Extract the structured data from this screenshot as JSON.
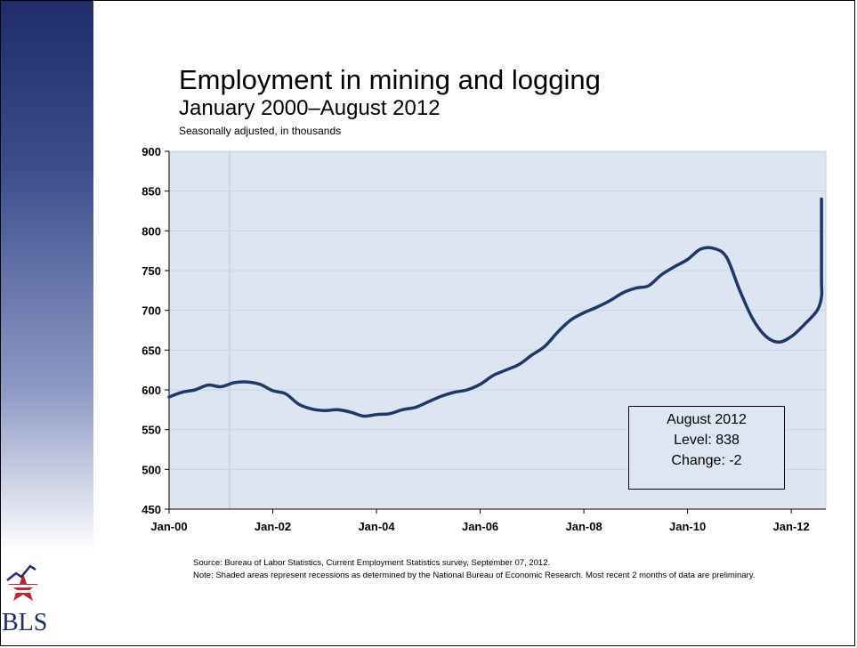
{
  "header": {
    "title": "Employment in mining and logging",
    "subtitle": "January 2000–August 2012",
    "units": "Seasonally adjusted, in thousands"
  },
  "callout": {
    "line1": "August 2012",
    "line2": "Level: 838",
    "line3": "Change: -2"
  },
  "footer": {
    "source": "Source: Bureau of Labor Statistics, Current Employment Statistics survey, September 07, 2012.",
    "note": "Note: Shaded areas represent recessions as determined by the National Bureau of Economic Research. Most recent 2 months of data are preliminary."
  },
  "logo": {
    "text": "BLS"
  },
  "colors": {
    "plot_bg": "#dce5f1",
    "line": "#1f3864",
    "sidebar": "#1f2d6b"
  },
  "chart_data": {
    "type": "line",
    "xlabel": "",
    "ylabel": "",
    "ylim": [
      450,
      900
    ],
    "yticks": [
      450,
      500,
      550,
      600,
      650,
      700,
      750,
      800,
      850,
      900
    ],
    "xtick_labels": [
      "Jan-00",
      "Jan-02",
      "Jan-04",
      "Jan-06",
      "Jan-08",
      "Jan-10",
      "Jan-12"
    ],
    "xtick_months": [
      0,
      24,
      48,
      72,
      96,
      120,
      144
    ],
    "x_start": "Jan-00",
    "grid": true,
    "series": [
      {
        "name": "",
        "step_months": 3,
        "values": [
          591,
          597,
          600,
          606,
          604,
          609,
          610,
          607,
          599,
          595,
          582,
          576,
          574,
          575,
          572,
          567,
          569,
          570,
          575,
          578,
          585,
          592,
          597,
          600,
          607,
          618,
          625,
          632,
          644,
          655,
          673,
          688,
          697,
          704,
          712,
          722,
          728,
          731,
          745,
          755,
          764,
          777,
          778,
          767,
          726,
          690,
          668,
          660,
          667,
          682,
          700,
          717,
          733,
          742,
          775,
          796,
          808,
          823,
          837,
          840,
          839,
          838
        ]
      }
    ]
  }
}
